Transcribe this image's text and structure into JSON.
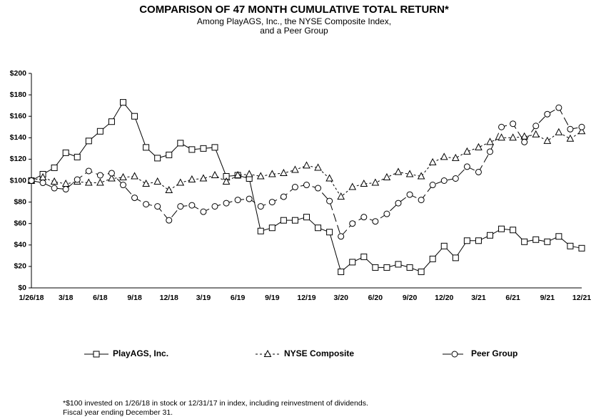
{
  "chart_data": {
    "type": "line",
    "title": "COMPARISON OF 47 MONTH CUMULATIVE TOTAL RETURN*",
    "subtitle": [
      "Among PlayAGS, Inc., the NYSE Composite Index,",
      "and a Peer Group"
    ],
    "footnote": [
      "*$100 invested on 1/26/18 in stock or 12/31/17 in index, including reinvestment of dividends.",
      "Fiscal year ending December 31."
    ],
    "categories": [
      "1/26/18",
      null,
      null,
      "3/18",
      null,
      null,
      "6/18",
      null,
      null,
      "9/18",
      null,
      null,
      "12/18",
      null,
      null,
      "3/19",
      null,
      null,
      "6/19",
      null,
      null,
      "9/19",
      null,
      null,
      "12/19",
      null,
      null,
      "3/20",
      null,
      null,
      "6/20",
      null,
      null,
      "9/20",
      null,
      null,
      "12/20",
      null,
      null,
      "3/21",
      null,
      null,
      "6/21",
      null,
      null,
      "9/21",
      null,
      null,
      "12/21"
    ],
    "ylim": [
      0,
      200
    ],
    "yticks": [
      {
        "value": 0,
        "label": "$0"
      },
      {
        "value": 20,
        "label": "$20"
      },
      {
        "value": 40,
        "label": "$40"
      },
      {
        "value": 60,
        "label": "$60"
      },
      {
        "value": 80,
        "label": "$80"
      },
      {
        "value": 100,
        "label": "$100"
      },
      {
        "value": 120,
        "label": "$120"
      },
      {
        "value": 140,
        "label": "$140"
      },
      {
        "value": 160,
        "label": "$160"
      },
      {
        "value": 180,
        "label": "$180"
      },
      {
        "value": 200,
        "label": "$200"
      }
    ],
    "series": [
      {
        "name": "PlayAGS, Inc.",
        "color": "#000000",
        "dash": "none",
        "marker": "square",
        "values": [
          100,
          106,
          112,
          126,
          122,
          137,
          146,
          155,
          173,
          160,
          131,
          121,
          124,
          135,
          129,
          130,
          131,
          104,
          105,
          102,
          53,
          56,
          63,
          63,
          66,
          56,
          52,
          15,
          24,
          29,
          19,
          19,
          22,
          19,
          15,
          27,
          39,
          28,
          44,
          44,
          49,
          55,
          54,
          43,
          45,
          43,
          48,
          39,
          37
        ]
      },
      {
        "name": "NYSE Composite",
        "color": "#000000",
        "dash": "3,3",
        "marker": "triangle",
        "values": [
          100,
          103,
          99,
          97,
          99,
          98,
          98,
          102,
          103,
          104,
          97,
          99,
          91,
          98,
          101,
          102,
          105,
          99,
          105,
          106,
          104,
          106,
          107,
          110,
          114,
          112,
          102,
          85,
          94,
          97,
          98,
          103,
          108,
          106,
          104,
          117,
          122,
          121,
          127,
          131,
          136,
          140,
          140,
          141,
          143,
          137,
          145,
          139,
          146
        ]
      },
      {
        "name": "Peer Group",
        "color": "#000000",
        "dash": "12,5",
        "marker": "circle",
        "values": [
          100,
          98,
          93,
          92,
          101,
          109,
          105,
          107,
          96,
          84,
          78,
          76,
          63,
          76,
          77,
          71,
          76,
          79,
          82,
          83,
          76,
          80,
          85,
          94,
          96,
          93,
          81,
          48,
          60,
          66,
          62,
          69,
          79,
          87,
          82,
          96,
          100,
          102,
          113,
          108,
          127,
          150,
          153,
          136,
          151,
          162,
          168,
          148,
          150
        ]
      }
    ]
  }
}
